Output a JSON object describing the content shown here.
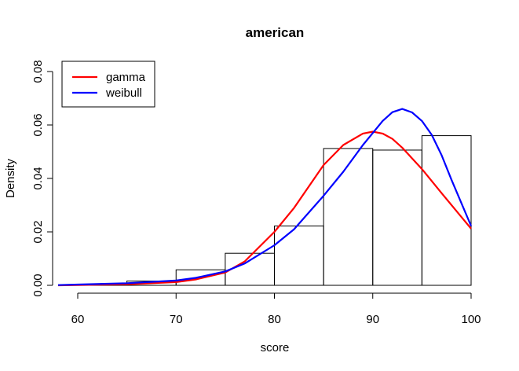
{
  "chart_data": {
    "type": "histogram",
    "title": "american",
    "xlabel": "score",
    "ylabel": "Density",
    "xlim": [
      60,
      100
    ],
    "ylim": [
      0,
      0.08
    ],
    "x_ticks": [
      "60",
      "70",
      "80",
      "90",
      "100"
    ],
    "y_ticks": [
      "0.00",
      "0.02",
      "0.04",
      "0.06",
      "0.08"
    ],
    "grid": false,
    "legend_position": "top-left",
    "bins": [
      {
        "x0": 60,
        "x1": 65,
        "density": 0.0004
      },
      {
        "x0": 65,
        "x1": 70,
        "density": 0.0016
      },
      {
        "x0": 70,
        "x1": 75,
        "density": 0.0058
      },
      {
        "x0": 75,
        "x1": 80,
        "density": 0.012
      },
      {
        "x0": 80,
        "x1": 85,
        "density": 0.0222
      },
      {
        "x0": 85,
        "x1": 90,
        "density": 0.0512
      },
      {
        "x0": 90,
        "x1": 95,
        "density": 0.0506
      },
      {
        "x0": 95,
        "x1": 100,
        "density": 0.056
      }
    ],
    "series": [
      {
        "name": "gamma",
        "color": "#ff0000",
        "x": [
          58,
          60,
          65,
          70,
          72,
          75,
          77,
          80,
          82,
          85,
          87,
          89,
          90,
          91,
          92,
          93,
          95,
          97,
          100
        ],
        "y": [
          0.0,
          0.0001,
          0.0004,
          0.0012,
          0.0022,
          0.0048,
          0.009,
          0.02,
          0.029,
          0.045,
          0.0525,
          0.0568,
          0.0575,
          0.0568,
          0.0548,
          0.0515,
          0.0435,
          0.0345,
          0.0212
        ]
      },
      {
        "name": "weibull",
        "color": "#0000ff",
        "x": [
          58,
          60,
          65,
          70,
          72,
          75,
          77,
          80,
          82,
          85,
          87,
          89,
          90,
          91,
          92,
          93,
          94,
          95,
          96,
          97,
          98,
          100
        ],
        "y": [
          0.0001,
          0.0003,
          0.0008,
          0.0018,
          0.0028,
          0.0052,
          0.0082,
          0.015,
          0.021,
          0.0335,
          0.0425,
          0.0525,
          0.057,
          0.0615,
          0.0648,
          0.066,
          0.0647,
          0.0615,
          0.0563,
          0.0487,
          0.0395,
          0.0222
        ]
      }
    ]
  }
}
